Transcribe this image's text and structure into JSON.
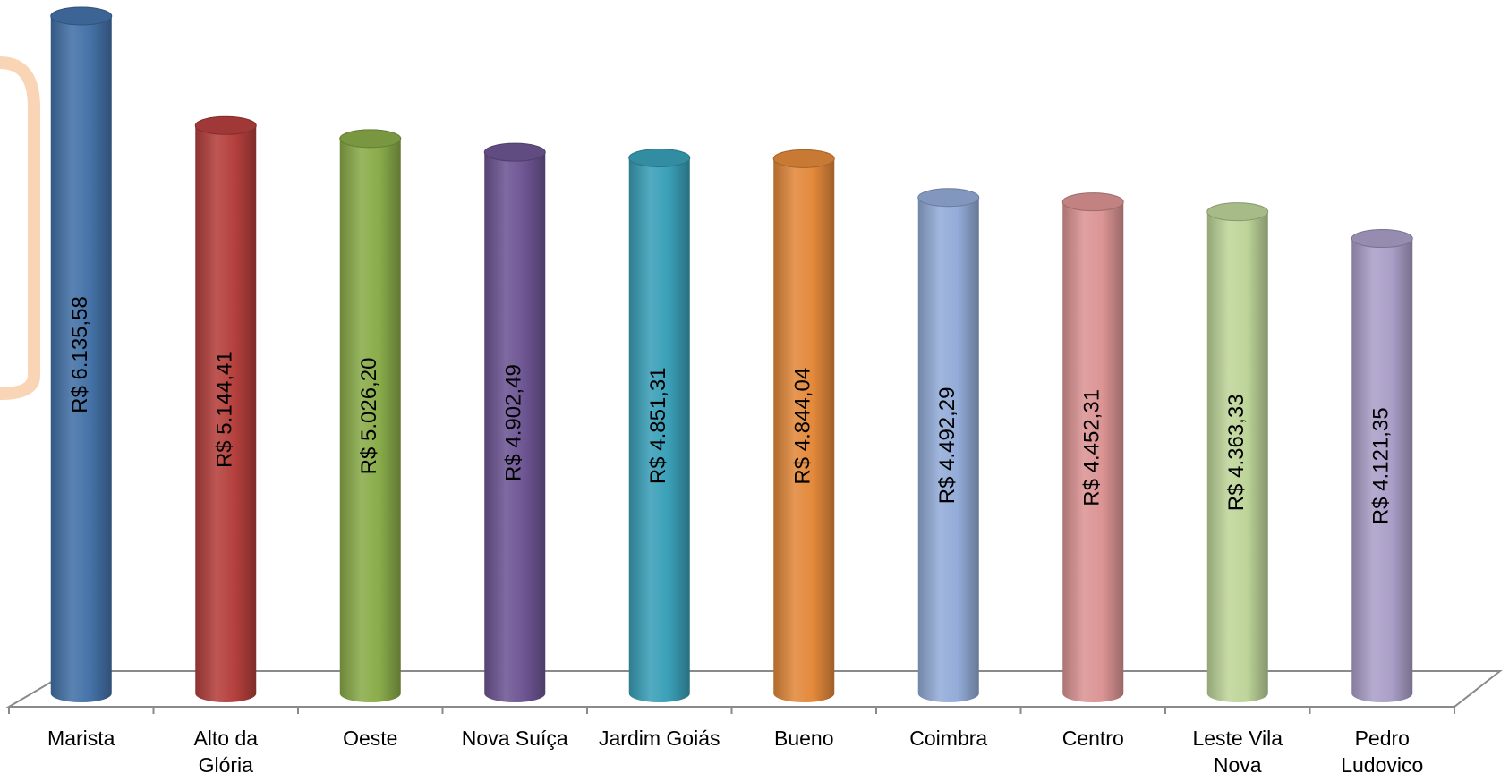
{
  "chart_data": {
    "type": "bar",
    "style": "3d-cylinder",
    "categories": [
      "Marista",
      "Alto da\nGlória",
      "Oeste",
      "Nova Suíça",
      "Jardim Goiás",
      "Bueno",
      "Coimbra",
      "Centro",
      "Leste Vila\nNova",
      "Pedro\nLudovico"
    ],
    "values": [
      6135.58,
      5144.41,
      5026.2,
      4902.49,
      4851.31,
      4844.04,
      4492.29,
      4452.31,
      4363.33,
      4121.35
    ],
    "data_labels": [
      "R$ 6.135,58",
      "R$ 5.144,41",
      "R$ 5.026,20",
      "R$ 4.902,49",
      "R$ 4.851,31",
      "R$ 4.844,04",
      "R$ 4.492,29",
      "R$ 4.452,31",
      "R$ 4.363,33",
      "R$ 4.121,35"
    ],
    "colors": [
      "#4472a8",
      "#b5403d",
      "#8aac4a",
      "#6e5694",
      "#3aa0b8",
      "#e3893b",
      "#93acd8",
      "#dc9494",
      "#bed59a",
      "#ab9fc8"
    ],
    "data_label_rotation": -90,
    "title": "",
    "xlabel": "",
    "ylabel": "",
    "ylim": [
      0,
      6200
    ],
    "grid": false,
    "legend": "none"
  }
}
